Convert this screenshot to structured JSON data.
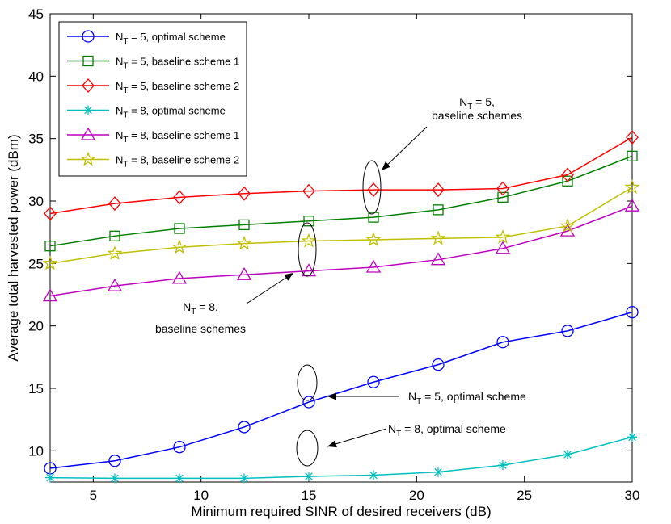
{
  "chart_data": {
    "type": "line",
    "xlabel": "Minimum required SINR of desired receivers (dB)",
    "ylabel": "Average total harvested power (dBm)",
    "xlim": [
      3,
      30
    ],
    "ylim": [
      7.5,
      45
    ],
    "xticks": [
      5,
      10,
      15,
      20,
      25,
      30
    ],
    "yticks": [
      10,
      15,
      20,
      25,
      30,
      35,
      40,
      45
    ],
    "x": [
      3,
      6,
      9,
      12,
      15,
      18,
      21,
      24,
      27,
      30
    ],
    "legend_position": "top-left",
    "series": [
      {
        "name_main": "N",
        "name_sub": "T",
        "name_rest": " = 5, optimal scheme",
        "color": "#0000ff",
        "marker": "circle",
        "values": [
          8.6,
          9.2,
          10.3,
          11.9,
          13.9,
          15.5,
          16.9,
          18.7,
          19.6,
          21.1
        ]
      },
      {
        "name_main": "N",
        "name_sub": "T",
        "name_rest": " = 5, baseline scheme 1",
        "color": "#008000",
        "marker": "square",
        "values": [
          26.4,
          27.2,
          27.8,
          28.1,
          28.4,
          28.7,
          29.3,
          30.3,
          31.6,
          33.6
        ]
      },
      {
        "name_main": "N",
        "name_sub": "T",
        "name_rest": " = 5, baseline scheme 2",
        "color": "#ff0000",
        "marker": "diamond",
        "values": [
          29.0,
          29.8,
          30.3,
          30.6,
          30.8,
          30.9,
          30.9,
          31.0,
          32.1,
          35.1
        ]
      },
      {
        "name_main": "N",
        "name_sub": "T",
        "name_rest": " = 8, optimal scheme",
        "color": "#00bfbf",
        "marker": "asterisk",
        "values": [
          7.85,
          7.8,
          7.8,
          7.8,
          7.95,
          8.05,
          8.3,
          8.85,
          9.7,
          11.1
        ]
      },
      {
        "name_main": "N",
        "name_sub": "T",
        "name_rest": " = 8, baseline scheme 1",
        "color": "#bf00bf",
        "marker": "triangle",
        "values": [
          22.4,
          23.2,
          23.8,
          24.1,
          24.4,
          24.7,
          25.3,
          26.2,
          27.6,
          29.6
        ]
      },
      {
        "name_main": "N",
        "name_sub": "T",
        "name_rest": " = 8, baseline scheme 2",
        "color": "#bfbf00",
        "marker": "star",
        "values": [
          25.0,
          25.8,
          26.3,
          26.6,
          26.8,
          26.9,
          27.0,
          27.1,
          28.0,
          31.1
        ]
      }
    ],
    "annotations": [
      {
        "lines": [
          {
            "main": "N",
            "sub": "T",
            "rest": " = 5,"
          },
          {
            "main": "baseline schemes",
            "sub": "",
            "rest": ""
          }
        ]
      },
      {
        "lines": [
          {
            "main": "N",
            "sub": "T",
            "rest": " = 8,"
          },
          {
            "main": "baseline schemes",
            "sub": "",
            "rest": ""
          }
        ]
      },
      {
        "lines": [
          {
            "main": "N",
            "sub": "T",
            "rest": " = 5, optimal scheme"
          }
        ]
      },
      {
        "lines": [
          {
            "main": "N",
            "sub": "T",
            "rest": " = 8, optimal scheme"
          }
        ]
      }
    ]
  }
}
